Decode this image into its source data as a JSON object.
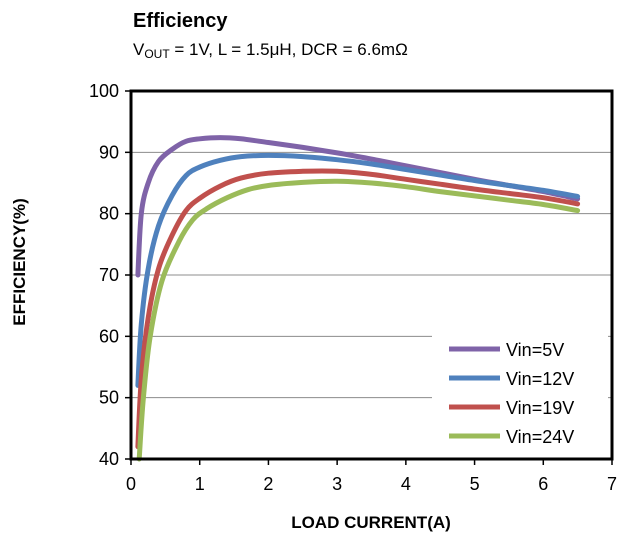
{
  "chart_data": {
    "type": "line",
    "title": "Efficiency",
    "subtitle": {
      "prefix": "V",
      "sub": "OUT",
      "rest": " = 1V, L = 1.5μH, DCR = 6.6mΩ"
    },
    "xlabel": "LOAD CURRENT(A)",
    "ylabel": "EFFICIENCY(%)",
    "xlim": [
      0,
      7
    ],
    "ylim": [
      40,
      100
    ],
    "xticks": [
      "0",
      "1",
      "2",
      "3",
      "4",
      "5",
      "6",
      "7"
    ],
    "yticks": [
      "40",
      "50",
      "60",
      "70",
      "80",
      "90",
      "100"
    ],
    "grid": "horizontal",
    "legend_position": "bottom-right",
    "series": [
      {
        "name": "Vin=5V",
        "color": "#7F63A8",
        "points": [
          [
            0.1,
            70
          ],
          [
            0.15,
            80
          ],
          [
            0.25,
            85
          ],
          [
            0.4,
            88.5
          ],
          [
            0.6,
            90.5
          ],
          [
            0.8,
            91.8
          ],
          [
            1.0,
            92.2
          ],
          [
            1.3,
            92.4
          ],
          [
            1.6,
            92.2
          ],
          [
            2.0,
            91.6
          ],
          [
            2.5,
            90.8
          ],
          [
            3.0,
            89.9
          ],
          [
            3.5,
            88.9
          ],
          [
            4.0,
            87.8
          ],
          [
            4.5,
            86.7
          ],
          [
            5.0,
            85.6
          ],
          [
            5.5,
            84.6
          ],
          [
            6.0,
            83.6
          ],
          [
            6.5,
            82.4
          ]
        ]
      },
      {
        "name": "Vin=12V",
        "color": "#4F81BD",
        "points": [
          [
            0.1,
            52
          ],
          [
            0.15,
            62
          ],
          [
            0.25,
            71
          ],
          [
            0.4,
            78
          ],
          [
            0.6,
            83
          ],
          [
            0.8,
            86.2
          ],
          [
            1.0,
            87.6
          ],
          [
            1.3,
            88.7
          ],
          [
            1.6,
            89.3
          ],
          [
            2.0,
            89.5
          ],
          [
            2.5,
            89.3
          ],
          [
            3.0,
            88.8
          ],
          [
            3.5,
            88.1
          ],
          [
            4.0,
            87.2
          ],
          [
            4.5,
            86.3
          ],
          [
            5.0,
            85.4
          ],
          [
            5.5,
            84.6
          ],
          [
            6.0,
            83.8
          ],
          [
            6.5,
            82.8
          ]
        ]
      },
      {
        "name": "Vin=19V",
        "color": "#C0504D",
        "points": [
          [
            0.1,
            42
          ],
          [
            0.15,
            53
          ],
          [
            0.25,
            63
          ],
          [
            0.4,
            71
          ],
          [
            0.6,
            76.5
          ],
          [
            0.8,
            80.5
          ],
          [
            1.0,
            82.5
          ],
          [
            1.3,
            84.5
          ],
          [
            1.6,
            85.8
          ],
          [
            2.0,
            86.6
          ],
          [
            2.5,
            86.9
          ],
          [
            3.0,
            86.9
          ],
          [
            3.5,
            86.4
          ],
          [
            4.0,
            85.6
          ],
          [
            4.5,
            84.8
          ],
          [
            5.0,
            84.0
          ],
          [
            5.5,
            83.3
          ],
          [
            6.0,
            82.6
          ],
          [
            6.5,
            81.6
          ]
        ]
      },
      {
        "name": "Vin=24V",
        "color": "#9BBB59",
        "points": [
          [
            0.12,
            40
          ],
          [
            0.18,
            50
          ],
          [
            0.28,
            60
          ],
          [
            0.45,
            69
          ],
          [
            0.7,
            75.5
          ],
          [
            0.9,
            79
          ],
          [
            1.1,
            80.8
          ],
          [
            1.4,
            82.6
          ],
          [
            1.7,
            83.9
          ],
          [
            2.0,
            84.6
          ],
          [
            2.5,
            85.1
          ],
          [
            3.0,
            85.3
          ],
          [
            3.5,
            85.0
          ],
          [
            4.0,
            84.4
          ],
          [
            4.5,
            83.6
          ],
          [
            5.0,
            82.9
          ],
          [
            5.5,
            82.2
          ],
          [
            6.0,
            81.5
          ],
          [
            6.5,
            80.5
          ]
        ]
      }
    ]
  }
}
